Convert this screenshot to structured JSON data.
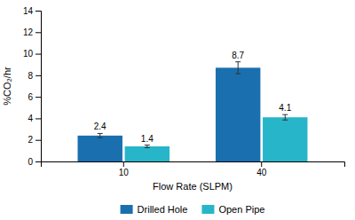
{
  "chart_data": {
    "type": "bar",
    "categories": [
      "10",
      "40"
    ],
    "series": [
      {
        "name": "Drilled Hole",
        "color": "#1A6FAF",
        "values": [
          2.4,
          8.7
        ],
        "errors": [
          0.2,
          0.55
        ]
      },
      {
        "name": "Open Pipe",
        "color": "#27B5C9",
        "values": [
          1.4,
          4.1
        ],
        "errors": [
          0.12,
          0.25
        ]
      }
    ],
    "xlabel": "Flow Rate (SLPM)",
    "ylabel": "%CO₂/hr",
    "ylim": [
      0,
      14
    ],
    "yticks": [
      0,
      2,
      4,
      6,
      8,
      10,
      12,
      14
    ],
    "data_labels": true,
    "grid": false,
    "legend": "bottom"
  }
}
